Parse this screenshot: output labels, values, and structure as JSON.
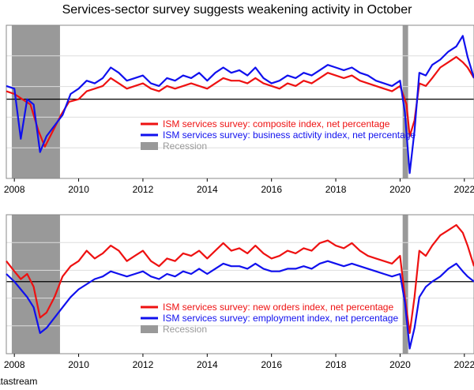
{
  "figure": {
    "title": "Services-sector survey suggests weakening activity in October",
    "source": "atastream"
  },
  "colors": {
    "red": "#ee1111",
    "blue": "#1010ee",
    "recession": "#999999",
    "zero_line": "#000000",
    "grid": "#dddddd"
  },
  "chart_data": [
    {
      "type": "line",
      "title": "",
      "x_ticks": [
        "2008",
        "2010",
        "2012",
        "2014",
        "2016",
        "2018",
        "2020",
        "2022"
      ],
      "xlim": [
        2007.75,
        2022.3
      ],
      "ylim": [
        -30,
        28
      ],
      "grid": true,
      "legend_position": "center",
      "recessions": [
        [
          2007.92,
          2009.42
        ],
        [
          2020.08,
          2020.25
        ]
      ],
      "legend": [
        {
          "label": "ISM services survey: composite index, net percentage",
          "color": "#ee1111"
        },
        {
          "label": "ISM services survey: business activity index, net percentage",
          "color": "#1010ee"
        },
        {
          "label": "Recession",
          "color": "#999999"
        }
      ],
      "series": [
        {
          "name": "ISM services survey: composite index, net percentage",
          "color": "#ee1111",
          "points": [
            [
              2007.75,
              3
            ],
            [
              2008.0,
              2
            ],
            [
              2008.25,
              0
            ],
            [
              2008.5,
              -2
            ],
            [
              2008.75,
              -12
            ],
            [
              2008.95,
              -18
            ],
            [
              2009.2,
              -12
            ],
            [
              2009.45,
              -6
            ],
            [
              2009.7,
              -1
            ],
            [
              2010.0,
              0
            ],
            [
              2010.25,
              3
            ],
            [
              2010.5,
              4
            ],
            [
              2010.75,
              5
            ],
            [
              2011.0,
              8
            ],
            [
              2011.25,
              6
            ],
            [
              2011.5,
              4
            ],
            [
              2011.75,
              5
            ],
            [
              2012.0,
              6
            ],
            [
              2012.25,
              4
            ],
            [
              2012.5,
              3
            ],
            [
              2012.75,
              5
            ],
            [
              2013.0,
              4
            ],
            [
              2013.25,
              5
            ],
            [
              2013.5,
              6
            ],
            [
              2013.75,
              5
            ],
            [
              2014.0,
              4
            ],
            [
              2014.25,
              6
            ],
            [
              2014.5,
              8
            ],
            [
              2014.75,
              7
            ],
            [
              2015.0,
              7
            ],
            [
              2015.25,
              6
            ],
            [
              2015.5,
              8
            ],
            [
              2015.75,
              6
            ],
            [
              2016.0,
              5
            ],
            [
              2016.25,
              4
            ],
            [
              2016.5,
              6
            ],
            [
              2016.75,
              5
            ],
            [
              2017.0,
              7
            ],
            [
              2017.25,
              6
            ],
            [
              2017.5,
              8
            ],
            [
              2017.75,
              10
            ],
            [
              2018.0,
              9
            ],
            [
              2018.25,
              8
            ],
            [
              2018.5,
              9
            ],
            [
              2018.75,
              7
            ],
            [
              2019.0,
              6
            ],
            [
              2019.25,
              5
            ],
            [
              2019.5,
              4
            ],
            [
              2019.75,
              3
            ],
            [
              2020.0,
              5
            ],
            [
              2020.2,
              -2
            ],
            [
              2020.3,
              -14
            ],
            [
              2020.45,
              -8
            ],
            [
              2020.6,
              6
            ],
            [
              2020.8,
              5
            ],
            [
              2021.0,
              8
            ],
            [
              2021.25,
              12
            ],
            [
              2021.5,
              14
            ],
            [
              2021.75,
              16
            ],
            [
              2021.95,
              14
            ],
            [
              2022.1,
              12
            ],
            [
              2022.3,
              8
            ]
          ]
        },
        {
          "name": "ISM services survey: business activity index, net percentage",
          "color": "#1010ee",
          "points": [
            [
              2007.75,
              5
            ],
            [
              2008.0,
              4
            ],
            [
              2008.2,
              -15
            ],
            [
              2008.4,
              0
            ],
            [
              2008.6,
              -2
            ],
            [
              2008.8,
              -20
            ],
            [
              2009.0,
              -14
            ],
            [
              2009.25,
              -10
            ],
            [
              2009.5,
              -6
            ],
            [
              2009.75,
              2
            ],
            [
              2010.0,
              4
            ],
            [
              2010.25,
              7
            ],
            [
              2010.5,
              6
            ],
            [
              2010.75,
              8
            ],
            [
              2011.0,
              12
            ],
            [
              2011.25,
              10
            ],
            [
              2011.5,
              7
            ],
            [
              2011.75,
              8
            ],
            [
              2012.0,
              9
            ],
            [
              2012.25,
              6
            ],
            [
              2012.5,
              5
            ],
            [
              2012.75,
              8
            ],
            [
              2013.0,
              7
            ],
            [
              2013.25,
              9
            ],
            [
              2013.5,
              8
            ],
            [
              2013.75,
              10
            ],
            [
              2014.0,
              7
            ],
            [
              2014.25,
              10
            ],
            [
              2014.5,
              12
            ],
            [
              2014.75,
              10
            ],
            [
              2015.0,
              11
            ],
            [
              2015.25,
              9
            ],
            [
              2015.5,
              12
            ],
            [
              2015.75,
              8
            ],
            [
              2016.0,
              6
            ],
            [
              2016.25,
              7
            ],
            [
              2016.5,
              9
            ],
            [
              2016.75,
              8
            ],
            [
              2017.0,
              10
            ],
            [
              2017.25,
              9
            ],
            [
              2017.5,
              11
            ],
            [
              2017.75,
              13
            ],
            [
              2018.0,
              12
            ],
            [
              2018.25,
              11
            ],
            [
              2018.5,
              12
            ],
            [
              2018.75,
              10
            ],
            [
              2019.0,
              9
            ],
            [
              2019.25,
              7
            ],
            [
              2019.5,
              6
            ],
            [
              2019.75,
              5
            ],
            [
              2020.0,
              7
            ],
            [
              2020.15,
              -5
            ],
            [
              2020.3,
              -28
            ],
            [
              2020.45,
              -12
            ],
            [
              2020.6,
              10
            ],
            [
              2020.8,
              9
            ],
            [
              2021.0,
              13
            ],
            [
              2021.25,
              15
            ],
            [
              2021.5,
              18
            ],
            [
              2021.75,
              20
            ],
            [
              2021.95,
              24
            ],
            [
              2022.1,
              16
            ],
            [
              2022.3,
              8
            ]
          ]
        }
      ]
    },
    {
      "type": "line",
      "title": "",
      "x_ticks": [
        "2008",
        "2010",
        "2012",
        "2014",
        "2016",
        "2018",
        "2020",
        "2022"
      ],
      "xlim": [
        2007.75,
        2022.3
      ],
      "ylim": [
        -28,
        26
      ],
      "grid": true,
      "legend_position": "bottom-center",
      "recessions": [
        [
          2007.92,
          2009.42
        ],
        [
          2020.08,
          2020.25
        ]
      ],
      "legend": [
        {
          "label": "ISM services survey: new orders index, net percentage",
          "color": "#ee1111"
        },
        {
          "label": "ISM services survey: employment index, net percentage",
          "color": "#1010ee"
        },
        {
          "label": "Recession",
          "color": "#999999"
        }
      ],
      "series": [
        {
          "name": "ISM services survey: new orders index, net percentage",
          "color": "#ee1111",
          "points": [
            [
              2007.75,
              8
            ],
            [
              2008.0,
              4
            ],
            [
              2008.2,
              1
            ],
            [
              2008.4,
              3
            ],
            [
              2008.6,
              -2
            ],
            [
              2008.8,
              -14
            ],
            [
              2009.0,
              -12
            ],
            [
              2009.25,
              -6
            ],
            [
              2009.5,
              2
            ],
            [
              2009.75,
              6
            ],
            [
              2010.0,
              8
            ],
            [
              2010.25,
              12
            ],
            [
              2010.5,
              9
            ],
            [
              2010.75,
              11
            ],
            [
              2011.0,
              14
            ],
            [
              2011.25,
              12
            ],
            [
              2011.5,
              8
            ],
            [
              2011.75,
              10
            ],
            [
              2012.0,
              12
            ],
            [
              2012.25,
              8
            ],
            [
              2012.5,
              6
            ],
            [
              2012.75,
              9
            ],
            [
              2013.0,
              8
            ],
            [
              2013.25,
              11
            ],
            [
              2013.5,
              10
            ],
            [
              2013.75,
              12
            ],
            [
              2014.0,
              9
            ],
            [
              2014.25,
              12
            ],
            [
              2014.5,
              15
            ],
            [
              2014.75,
              12
            ],
            [
              2015.0,
              13
            ],
            [
              2015.25,
              11
            ],
            [
              2015.5,
              14
            ],
            [
              2015.75,
              11
            ],
            [
              2016.0,
              9
            ],
            [
              2016.25,
              10
            ],
            [
              2016.5,
              12
            ],
            [
              2016.75,
              11
            ],
            [
              2017.0,
              13
            ],
            [
              2017.25,
              12
            ],
            [
              2017.5,
              15
            ],
            [
              2017.75,
              16
            ],
            [
              2018.0,
              14
            ],
            [
              2018.25,
              13
            ],
            [
              2018.5,
              15
            ],
            [
              2018.75,
              12
            ],
            [
              2019.0,
              10
            ],
            [
              2019.25,
              9
            ],
            [
              2019.5,
              8
            ],
            [
              2019.75,
              7
            ],
            [
              2020.0,
              10
            ],
            [
              2020.15,
              -6
            ],
            [
              2020.3,
              -20
            ],
            [
              2020.45,
              -6
            ],
            [
              2020.6,
              12
            ],
            [
              2020.8,
              10
            ],
            [
              2021.0,
              14
            ],
            [
              2021.25,
              18
            ],
            [
              2021.5,
              20
            ],
            [
              2021.75,
              22
            ],
            [
              2021.95,
              19
            ],
            [
              2022.1,
              14
            ],
            [
              2022.3,
              6
            ]
          ]
        },
        {
          "name": "ISM services survey: employment index, net percentage",
          "color": "#1010ee",
          "points": [
            [
              2007.75,
              3
            ],
            [
              2008.0,
              0
            ],
            [
              2008.2,
              -3
            ],
            [
              2008.4,
              -6
            ],
            [
              2008.6,
              -10
            ],
            [
              2008.8,
              -20
            ],
            [
              2009.0,
              -18
            ],
            [
              2009.25,
              -14
            ],
            [
              2009.5,
              -10
            ],
            [
              2009.75,
              -6
            ],
            [
              2010.0,
              -3
            ],
            [
              2010.25,
              -1
            ],
            [
              2010.5,
              1
            ],
            [
              2010.75,
              2
            ],
            [
              2011.0,
              4
            ],
            [
              2011.25,
              3
            ],
            [
              2011.5,
              2
            ],
            [
              2011.75,
              3
            ],
            [
              2012.0,
              4
            ],
            [
              2012.25,
              2
            ],
            [
              2012.5,
              1
            ],
            [
              2012.75,
              3
            ],
            [
              2013.0,
              2
            ],
            [
              2013.25,
              4
            ],
            [
              2013.5,
              3
            ],
            [
              2013.75,
              5
            ],
            [
              2014.0,
              3
            ],
            [
              2014.25,
              5
            ],
            [
              2014.5,
              7
            ],
            [
              2014.75,
              6
            ],
            [
              2015.0,
              6
            ],
            [
              2015.25,
              5
            ],
            [
              2015.5,
              7
            ],
            [
              2015.75,
              5
            ],
            [
              2016.0,
              4
            ],
            [
              2016.25,
              4
            ],
            [
              2016.5,
              5
            ],
            [
              2016.75,
              5
            ],
            [
              2017.0,
              6
            ],
            [
              2017.25,
              5
            ],
            [
              2017.5,
              7
            ],
            [
              2017.75,
              8
            ],
            [
              2018.0,
              7
            ],
            [
              2018.25,
              6
            ],
            [
              2018.5,
              7
            ],
            [
              2018.75,
              6
            ],
            [
              2019.0,
              5
            ],
            [
              2019.25,
              4
            ],
            [
              2019.5,
              3
            ],
            [
              2019.75,
              2
            ],
            [
              2020.0,
              3
            ],
            [
              2020.15,
              -8
            ],
            [
              2020.3,
              -26
            ],
            [
              2020.45,
              -18
            ],
            [
              2020.6,
              -6
            ],
            [
              2020.8,
              -2
            ],
            [
              2021.0,
              0
            ],
            [
              2021.25,
              2
            ],
            [
              2021.5,
              5
            ],
            [
              2021.75,
              7
            ],
            [
              2021.95,
              4
            ],
            [
              2022.1,
              2
            ],
            [
              2022.3,
              0
            ]
          ]
        }
      ]
    }
  ]
}
